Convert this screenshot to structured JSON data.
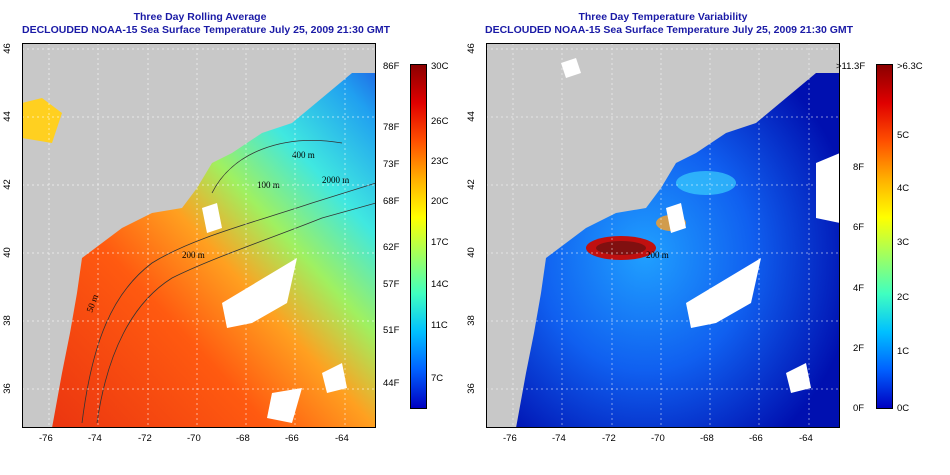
{
  "left_panel": {
    "title_line1": "Three Day Rolling Average",
    "title_line2": "DECLOUDED NOAA-15 Sea Surface Temperature July 25, 2009 21:30 GMT",
    "x_ticks": [
      "-76",
      "-74",
      "-72",
      "-70",
      "-68",
      "-66",
      "-64"
    ],
    "y_ticks": [
      "46",
      "44",
      "42",
      "40",
      "38",
      "36"
    ],
    "contour_labels": [
      "400 m",
      "2000 m",
      "200 m",
      "50 m",
      "100 m"
    ],
    "colorbar": {
      "left_labels": [
        "86F",
        "78F",
        "73F",
        "68F",
        "62F",
        "57F",
        "51F",
        "44F"
      ],
      "right_labels": [
        "30C",
        "26C",
        "23C",
        "20C",
        "17C",
        "14C",
        "11C",
        "7C"
      ],
      "colors": [
        "#8b0000",
        "#ff2000",
        "#ff8000",
        "#ffff00",
        "#40ff80",
        "#00e0ff",
        "#0080ff",
        "#0000c0"
      ]
    }
  },
  "right_panel": {
    "title_line1": "Three Day Temperature Variability",
    "title_line2": "DECLOUDED NOAA-15 Sea Surface Temperature July 25, 2009 21:30 GMT",
    "x_ticks": [
      "-76",
      "-74",
      "-72",
      "-70",
      "-68",
      "-66",
      "-64"
    ],
    "y_ticks": [
      "46",
      "44",
      "42",
      "40",
      "38",
      "36"
    ],
    "contour_labels": [
      "200 m"
    ],
    "colorbar": {
      "left_labels": [
        ">11.3F",
        "8F",
        "6F",
        "4F",
        "2F",
        "0F"
      ],
      "right_labels": [
        ">6.3C",
        "5C",
        "4C",
        "3C",
        "2C",
        "1C",
        "0C"
      ],
      "colors": [
        "#8b0000",
        "#ff2000",
        "#ff8000",
        "#ffff00",
        "#40ff80",
        "#00e0ff",
        "#0080ff",
        "#0000c0"
      ]
    }
  },
  "colors": {
    "title": "#1a1aa6",
    "land": "#c8c8c8",
    "cloud_gap": "#ffffff"
  }
}
